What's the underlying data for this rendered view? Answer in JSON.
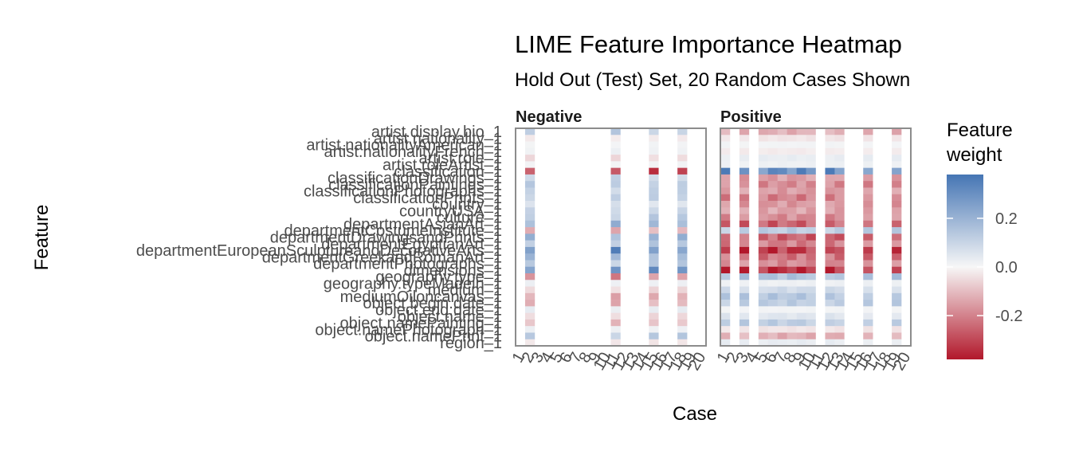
{
  "chart_data": {
    "type": "heatmap",
    "title": "LIME Feature Importance Heatmap",
    "subtitle": "Hold Out (Test) Set, 20 Random Cases Shown",
    "xlabel": "Case",
    "ylabel": "Feature",
    "facets": [
      "Negative",
      "Positive"
    ],
    "cases": [
      "1",
      "2",
      "3",
      "4",
      "5",
      "6",
      "7",
      "8",
      "9",
      "10",
      "11",
      "12",
      "13",
      "14",
      "15",
      "16",
      "17",
      "18",
      "19",
      "20"
    ],
    "features": [
      "artist.display.bio_1",
      "artist.nationality_1",
      "artist.nationalityAmerican_1",
      "artist.nationalityFrench_1",
      "artist.role_1",
      "artist.roleArtist_1",
      "classification_1",
      "classificationDrawings_1",
      "classificationPaintings_1",
      "classificationPhotographs_1",
      "classificationPrints_1",
      "country_1",
      "countryUSA_1",
      "culture_1",
      "departmentAsianArt_1",
      "departmentCostumeInstitute_1",
      "departmentDrawingsandPrints_1",
      "departmentEgyptianArt_1",
      "departmentEuropeanSculptureandDecorativeArts_1",
      "departmentGreekandRomanArt_1",
      "departmentPhotographs_1",
      "dimensions_1",
      "geography.type_1",
      "geography.typeMadein_1",
      "medium_1",
      "mediumOiloncanvas_1",
      "object.begin.date_1",
      "object.end.date_1",
      "object.name_1",
      "object.namePainting_1",
      "object.namePhotograph_1",
      "object.namePrint_1",
      "region_1"
    ],
    "present_cases": {
      "Negative": [
        "2",
        "11",
        "15",
        "18"
      ],
      "Positive": [
        "1",
        "3",
        "5",
        "6",
        "7",
        "8",
        "9",
        "10",
        "12",
        "13",
        "16",
        "19"
      ]
    },
    "weights": {
      "Negative": [
        0.12,
        -0.02,
        0.01,
        0.02,
        -0.05,
        0.01,
        -0.3,
        0.1,
        0.12,
        0.1,
        0.12,
        0.06,
        0.09,
        0.12,
        0.2,
        -0.12,
        0.18,
        0.13,
        0.3,
        0.17,
        0.12,
        0.3,
        -0.18,
        0.02,
        -0.05,
        -0.14,
        -0.12,
        0.03,
        -0.05,
        -0.1,
        0.02,
        0.12,
        -0.03
      ],
      "Positive": [
        -0.12,
        -0.03,
        0.01,
        -0.02,
        0.03,
        0.02,
        0.3,
        -0.15,
        -0.18,
        -0.15,
        -0.2,
        -0.16,
        -0.14,
        -0.18,
        -0.25,
        0.12,
        -0.25,
        -0.2,
        -0.32,
        -0.22,
        -0.18,
        -0.35,
        0.15,
        0.02,
        0.08,
        0.14,
        0.12,
        0.01,
        0.05,
        0.12,
        -0.03,
        -0.12,
        0.03
      ]
    },
    "color_scale": {
      "low": "#b2182b",
      "mid": "#f7f7f7",
      "high": "#4575b4",
      "limits": [
        -0.38,
        0.38
      ],
      "breaks": [
        0.2,
        0.0,
        -0.2
      ],
      "break_labels": [
        "0.2",
        "0.0",
        "-0.2"
      ],
      "title_lines": [
        "Feature",
        "weight"
      ]
    },
    "ylim_cases": [
      1,
      20
    ],
    "grid": false,
    "legend_position": "right"
  }
}
